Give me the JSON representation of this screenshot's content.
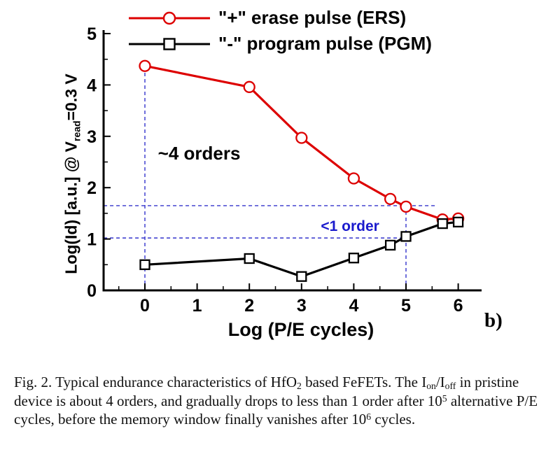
{
  "figure_label": "b)",
  "legend": {
    "items": [
      {
        "label": "\"+\" erase pulse (ERS)",
        "marker": "circle",
        "color": "#dd0000"
      },
      {
        "label": "\"-\" program pulse (PGM)",
        "marker": "square",
        "color": "#000000"
      }
    ]
  },
  "axes": {
    "x_label": "Log (P/E cycles)",
    "y_label_main": "Log(Id) [a.u.] @ V",
    "y_label_sub": "read",
    "y_label_tail": "=0.3 V",
    "x_ticks": [
      0,
      1,
      2,
      3,
      4,
      5,
      6
    ],
    "y_ticks": [
      0,
      1,
      2,
      3,
      4,
      5
    ]
  },
  "chart_data": {
    "type": "line",
    "title": "",
    "xlabel": "Log (P/E cycles)",
    "ylabel": "Log(Id) [a.u.] @ Vread=0.3 V",
    "xlim": [
      -0.8,
      6.45
    ],
    "ylim": [
      0,
      5
    ],
    "grid": false,
    "legend_position": "top",
    "series": [
      {
        "name": "\"+\" erase pulse (ERS)",
        "color": "#dd0000",
        "marker": "circle",
        "x": [
          0,
          2,
          3,
          4,
          4.7,
          5,
          5.7,
          6
        ],
        "y": [
          4.37,
          3.96,
          2.97,
          2.18,
          1.78,
          1.63,
          1.38,
          1.4
        ]
      },
      {
        "name": "\"-\" program pulse (PGM)",
        "color": "#000000",
        "marker": "square",
        "x": [
          0,
          2,
          3,
          4,
          4.7,
          5,
          5.7,
          6
        ],
        "y": [
          0.5,
          0.62,
          0.27,
          0.63,
          0.88,
          1.05,
          1.3,
          1.33
        ]
      }
    ],
    "guides": {
      "color": "#3333cc",
      "vlines": [
        {
          "x": 0,
          "y0": 0,
          "y1": 4.37
        },
        {
          "x": 5,
          "y0": 0,
          "y1": 1.65
        }
      ],
      "hlines": [
        {
          "y": 1.65,
          "x0": -0.79,
          "x1": 5.6
        },
        {
          "y": 1.02,
          "x0": -0.79,
          "x1": 5.0
        }
      ]
    },
    "annotations": [
      {
        "text": "~4 orders",
        "x": 0.25,
        "y": 2.55,
        "color": "#000000",
        "size": 26
      },
      {
        "text": "<1 order",
        "x": 3.37,
        "y": 1.16,
        "color": "#1a1acd",
        "size": 21
      }
    ]
  },
  "caption": {
    "parts": {
      "p1": "Fig. 2. Typical endurance characteristics of HfO",
      "p2": "2",
      "p3": " based FeFETs. The I",
      "p4": "on",
      "p5": "/I",
      "p6": "off",
      "p7": " in pristine device is about 4 orders, and gradually drops to less than 1 order after 10",
      "p8": "5",
      "p9": " alternative P/E cycles, before the memory window finally vanishes after 10",
      "p10": "6",
      "p11": " cycles."
    }
  }
}
